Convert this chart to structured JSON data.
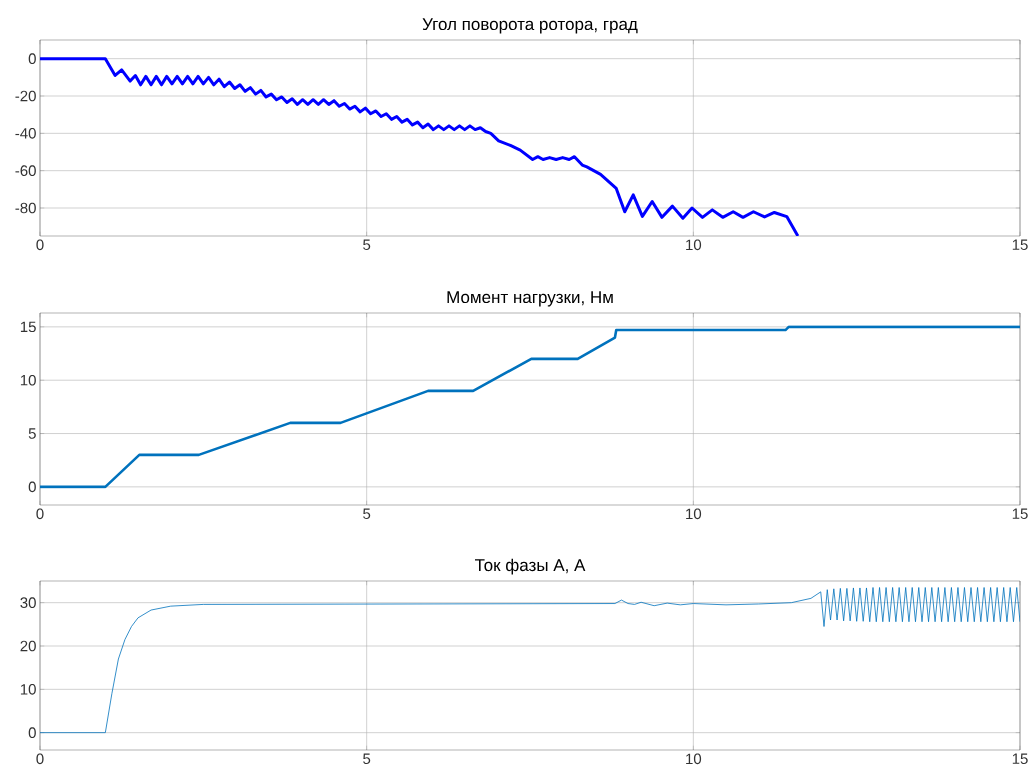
{
  "chart_data": [
    {
      "type": "line",
      "title": "Угол поворота ротора, град",
      "color": "#0000ff",
      "grid": true,
      "xlim": [
        0,
        15
      ],
      "ylim": [
        -95,
        10
      ],
      "xticks": [
        0,
        5,
        10,
        15
      ],
      "yticks": [
        -80,
        -60,
        -40,
        -20,
        0
      ],
      "x": [
        0,
        1.0,
        1.15,
        1.25,
        1.38,
        1.46,
        1.54,
        1.62,
        1.7,
        1.78,
        1.86,
        1.94,
        2.02,
        2.1,
        2.18,
        2.26,
        2.34,
        2.42,
        2.5,
        2.58,
        2.66,
        2.74,
        2.82,
        2.9,
        2.98,
        3.06,
        3.14,
        3.22,
        3.3,
        3.38,
        3.46,
        3.54,
        3.62,
        3.7,
        3.78,
        3.86,
        3.94,
        4.02,
        4.1,
        4.18,
        4.26,
        4.34,
        4.42,
        4.5,
        4.58,
        4.66,
        4.74,
        4.82,
        4.9,
        4.98,
        5.06,
        5.14,
        5.22,
        5.3,
        5.38,
        5.46,
        5.54,
        5.62,
        5.7,
        5.78,
        5.86,
        5.94,
        6.02,
        6.1,
        6.18,
        6.26,
        6.34,
        6.42,
        6.5,
        6.58,
        6.66,
        6.74,
        6.82,
        6.9,
        7.02,
        7.2,
        7.35,
        7.54,
        7.62,
        7.7,
        7.8,
        7.9,
        8.0,
        8.1,
        8.18,
        8.3,
        8.37,
        8.58,
        8.82,
        8.95,
        9.08,
        9.22,
        9.37,
        9.52,
        9.68,
        9.84,
        9.98,
        10.14,
        10.29,
        10.45,
        10.61,
        10.76,
        10.92,
        11.09,
        11.24,
        11.43,
        11.6
      ],
      "values": [
        0,
        0,
        -9,
        -6,
        -12,
        -9,
        -14,
        -9.5,
        -14,
        -9.5,
        -14,
        -9.5,
        -13.5,
        -9.5,
        -13.5,
        -9.5,
        -13.5,
        -9.5,
        -13.5,
        -10,
        -14,
        -11,
        -15,
        -12.5,
        -16,
        -14,
        -17.5,
        -15.5,
        -19,
        -17,
        -20.5,
        -19,
        -22,
        -20.5,
        -23.5,
        -21.5,
        -24.5,
        -22,
        -24.5,
        -22,
        -24.5,
        -22,
        -24.5,
        -22.5,
        -25.5,
        -24,
        -27,
        -25.5,
        -28.5,
        -26.5,
        -29.5,
        -28,
        -31,
        -29.5,
        -32.5,
        -31,
        -34,
        -32.5,
        -35.5,
        -34,
        -37,
        -35,
        -38,
        -36,
        -38,
        -36,
        -38,
        -36,
        -38,
        -36,
        -38,
        -37,
        -39,
        -40,
        -44,
        -46.5,
        -49,
        -54,
        -52.5,
        -54,
        -53,
        -54,
        -53,
        -54,
        -52.5,
        -57,
        -58,
        -62,
        -69.5,
        -82,
        -73,
        -84.5,
        -76.5,
        -85,
        -79,
        -85.5,
        -80,
        -85,
        -81,
        -85,
        -82,
        -85,
        -82,
        -84.8,
        -82.4,
        -84.6,
        -95
      ]
    },
    {
      "type": "line",
      "title": "Момент нагрузки, Нм",
      "color": "#0072bd",
      "grid": true,
      "xlim": [
        0,
        15
      ],
      "ylim": [
        -1.7,
        16.3
      ],
      "xticks": [
        0,
        5,
        10,
        15
      ],
      "yticks": [
        0,
        5,
        10,
        15
      ],
      "x": [
        0,
        1.0,
        1.52,
        2.43,
        3.83,
        4.6,
        5.94,
        6.63,
        7.52,
        8.23,
        8.8,
        8.82,
        11.41,
        11.46,
        15
      ],
      "values": [
        0,
        0,
        3,
        3,
        6,
        6,
        9,
        9,
        12,
        12,
        14,
        14.7,
        14.7,
        15,
        15
      ]
    },
    {
      "type": "line",
      "title": "Ток фазы А, А",
      "color": "#0072bd",
      "grid": true,
      "xlim": [
        0,
        15
      ],
      "ylim": [
        -4,
        35
      ],
      "xticks": [
        0,
        5,
        10,
        15
      ],
      "yticks": [
        0,
        10,
        20,
        30
      ],
      "x": [
        0,
        1.0,
        1.1,
        1.2,
        1.3,
        1.4,
        1.5,
        1.7,
        2.0,
        2.5,
        8.8,
        8.9,
        9.0,
        9.1,
        9.2,
        9.4,
        9.6,
        9.8,
        10,
        10.5,
        11,
        11.5,
        11.8,
        11.95,
        12.0,
        12.05,
        12.1,
        12.15,
        12.2,
        12.25,
        12.3,
        12.35,
        12.4,
        12.45,
        12.5,
        12.55,
        12.6,
        12.65,
        12.7,
        12.75,
        12.8,
        12.85,
        12.9,
        12.95,
        13.0,
        13.05,
        13.1,
        13.15,
        13.2,
        13.25,
        13.3,
        13.35,
        13.4,
        13.45,
        13.5,
        13.55,
        13.6,
        13.65,
        13.7,
        13.75,
        13.8,
        13.85,
        13.9,
        13.95,
        14.0,
        14.05,
        14.1,
        14.15,
        14.2,
        14.25,
        14.3,
        14.35,
        14.4,
        14.45,
        14.5,
        14.55,
        14.6,
        14.65,
        14.7,
        14.75,
        14.8,
        14.85,
        14.9,
        14.95,
        15.0
      ],
      "values": [
        0,
        0,
        9,
        17,
        21.5,
        24.5,
        26.5,
        28.3,
        29.2,
        29.6,
        29.8,
        30.6,
        29.8,
        29.6,
        30.1,
        29.3,
        29.9,
        29.5,
        29.8,
        29.5,
        29.7,
        30,
        31,
        32.5,
        24.5,
        33,
        26,
        33.2,
        26,
        33.3,
        25.8,
        33.3,
        25.8,
        33.4,
        25.7,
        33.4,
        25.7,
        33.4,
        25.6,
        33.5,
        25.6,
        33.5,
        25.6,
        33.5,
        25.6,
        33.5,
        25.6,
        33.5,
        25.6,
        33.5,
        25.6,
        33.5,
        25.6,
        33.5,
        25.6,
        33.5,
        25.6,
        33.5,
        25.6,
        33.5,
        25.6,
        33.5,
        25.6,
        33.5,
        25.6,
        33.5,
        25.6,
        33.5,
        25.6,
        33.5,
        25.6,
        33.5,
        25.6,
        33.5,
        25.6,
        33.5,
        25.6,
        33.5,
        25.6,
        33.5,
        25.6,
        33.5,
        25.6,
        33.5,
        25.6
      ]
    }
  ]
}
